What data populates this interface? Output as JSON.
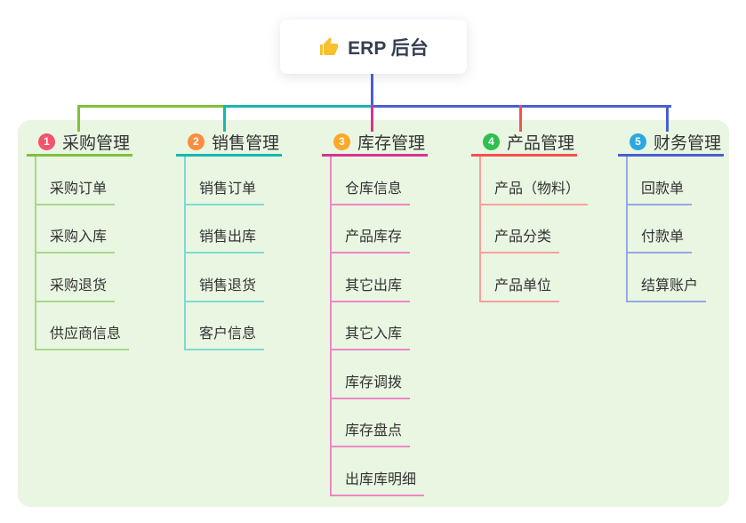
{
  "root": {
    "label": "ERP 后台",
    "icon": "thumbs-up",
    "icon_color": "#f6c02e"
  },
  "branches": [
    {
      "index": "1",
      "title": "采购管理",
      "badge_color": "#f4536e",
      "line_color": "#7fc13d",
      "sub_line_color": "#a9d789",
      "items": [
        "采购订单",
        "采购入库",
        "采购退货",
        "供应商信息"
      ]
    },
    {
      "index": "2",
      "title": "销售管理",
      "badge_color": "#fb8d41",
      "line_color": "#14b8ae",
      "sub_line_color": "#7fd9d0",
      "items": [
        "销售订单",
        "销售出库",
        "销售退货",
        "客户信息"
      ]
    },
    {
      "index": "3",
      "title": "库存管理",
      "badge_color": "#fda827",
      "line_color": "#d83295",
      "sub_line_color": "#ee87c4",
      "items": [
        "仓库信息",
        "产品库存",
        "其它出库",
        "其它入库",
        "库存调拨",
        "库存盘点",
        "出库库明细"
      ]
    },
    {
      "index": "4",
      "title": "产品管理",
      "badge_color": "#2fbf4d",
      "line_color": "#f5504f",
      "sub_line_color": "#f9a09a",
      "items": [
        "产品（物料）",
        "产品分类",
        "产品单位"
      ]
    },
    {
      "index": "5",
      "title": "财务管理",
      "badge_color": "#2aa9e1",
      "line_color": "#4a5ed2",
      "sub_line_color": "#97a9e2",
      "items": [
        "回款单",
        "付款单",
        "结算账户"
      ]
    }
  ],
  "colors": {
    "page_bg": "#ffffff",
    "canvas_bg": "#e9f6e2",
    "text": "#333333",
    "root_text": "#333f52"
  }
}
